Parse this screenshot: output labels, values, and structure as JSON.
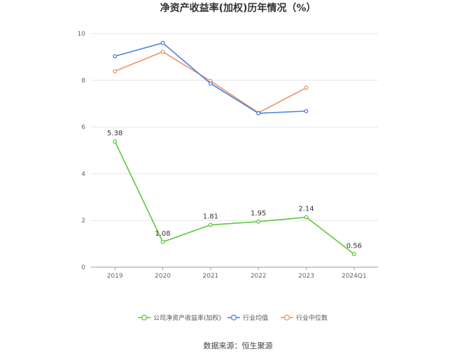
{
  "chart_data": {
    "type": "line",
    "title": "净资产收益率(加权)历年情况（%）",
    "categories": [
      "2019",
      "2020",
      "2021",
      "2022",
      "2023",
      "2024Q1"
    ],
    "ylim": [
      0,
      10
    ],
    "yticks": [
      "0",
      "2",
      "4",
      "6",
      "8",
      "10"
    ],
    "grid": true,
    "legend_position": "bottom",
    "series": [
      {
        "name": "公司净资产收益率(加权)",
        "color": "#5ec53a",
        "values": [
          5.38,
          1.08,
          1.81,
          1.95,
          2.14,
          0.56
        ],
        "labels": [
          "5.38",
          "1.08",
          "1.81",
          "1.95",
          "2.14",
          "0.56"
        ]
      },
      {
        "name": "行业均值",
        "color": "#4a7fe0",
        "values": [
          9.03,
          9.6,
          7.86,
          6.59,
          6.68,
          null
        ]
      },
      {
        "name": "行业中位数",
        "color": "#f0906a",
        "values": [
          8.39,
          9.22,
          7.97,
          6.61,
          7.68,
          null
        ]
      }
    ],
    "source": "数据来源：恒生聚源"
  }
}
